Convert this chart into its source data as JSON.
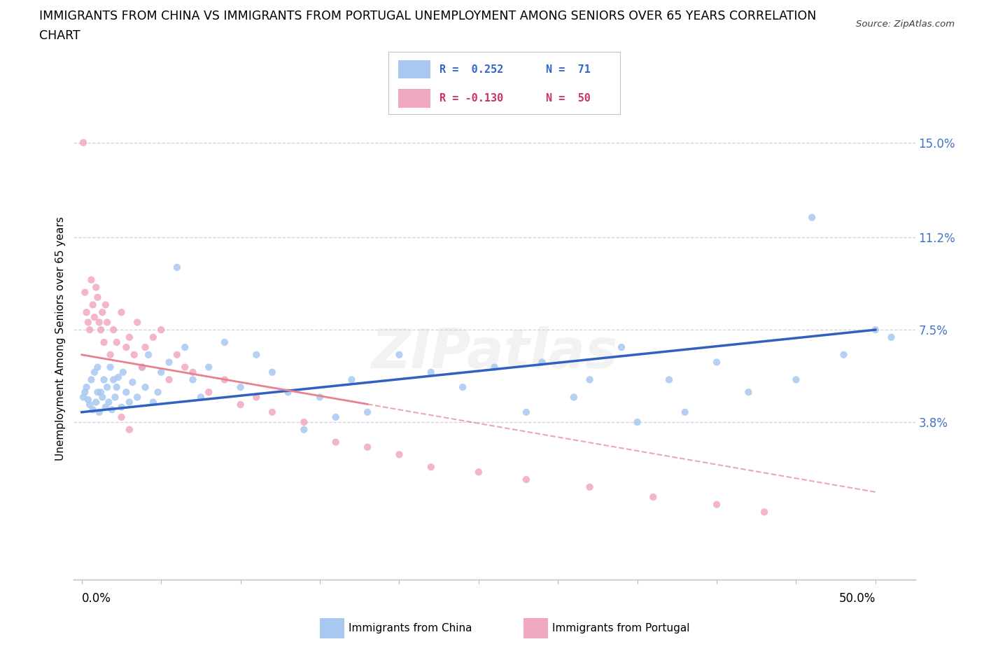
{
  "title_line1": "IMMIGRANTS FROM CHINA VS IMMIGRANTS FROM PORTUGAL UNEMPLOYMENT AMONG SENIORS OVER 65 YEARS CORRELATION",
  "title_line2": "CHART",
  "source": "Source: ZipAtlas.com",
  "ylabel": "Unemployment Among Seniors over 65 years",
  "yticks": [
    0.0,
    0.038,
    0.075,
    0.112,
    0.15
  ],
  "ytick_labels": [
    "",
    "3.8%",
    "7.5%",
    "11.2%",
    "15.0%"
  ],
  "xlim": [
    -0.005,
    0.525
  ],
  "ylim": [
    -0.025,
    0.168
  ],
  "legend_china_r": "R =  0.252",
  "legend_china_n": "N =  71",
  "legend_portugal_r": "R = -0.130",
  "legend_portugal_n": "N =  50",
  "color_china": "#a8c8f0",
  "color_portugal": "#f0a8c0",
  "color_china_line": "#3060c0",
  "color_portugal_line": "#e88090",
  "color_grid": "#d0d0e0",
  "china_x": [
    0.001,
    0.002,
    0.003,
    0.004,
    0.005,
    0.006,
    0.007,
    0.008,
    0.009,
    0.01,
    0.01,
    0.011,
    0.012,
    0.013,
    0.014,
    0.015,
    0.016,
    0.017,
    0.018,
    0.019,
    0.02,
    0.021,
    0.022,
    0.023,
    0.025,
    0.026,
    0.028,
    0.03,
    0.032,
    0.035,
    0.038,
    0.04,
    0.042,
    0.045,
    0.048,
    0.05,
    0.055,
    0.06,
    0.065,
    0.07,
    0.075,
    0.08,
    0.09,
    0.1,
    0.11,
    0.12,
    0.13,
    0.15,
    0.17,
    0.2,
    0.22,
    0.24,
    0.26,
    0.29,
    0.31,
    0.34,
    0.37,
    0.4,
    0.42,
    0.45,
    0.48,
    0.5,
    0.51,
    0.28,
    0.32,
    0.35,
    0.38,
    0.16,
    0.18,
    0.14,
    0.46
  ],
  "china_y": [
    0.048,
    0.05,
    0.052,
    0.047,
    0.045,
    0.055,
    0.043,
    0.058,
    0.046,
    0.05,
    0.06,
    0.042,
    0.05,
    0.048,
    0.055,
    0.044,
    0.052,
    0.046,
    0.06,
    0.043,
    0.055,
    0.048,
    0.052,
    0.056,
    0.044,
    0.058,
    0.05,
    0.046,
    0.054,
    0.048,
    0.06,
    0.052,
    0.065,
    0.046,
    0.05,
    0.058,
    0.062,
    0.1,
    0.068,
    0.055,
    0.048,
    0.06,
    0.07,
    0.052,
    0.065,
    0.058,
    0.05,
    0.048,
    0.055,
    0.065,
    0.058,
    0.052,
    0.06,
    0.062,
    0.048,
    0.068,
    0.055,
    0.062,
    0.05,
    0.055,
    0.065,
    0.075,
    0.072,
    0.042,
    0.055,
    0.038,
    0.042,
    0.04,
    0.042,
    0.035,
    0.12
  ],
  "portugal_x": [
    0.001,
    0.002,
    0.003,
    0.004,
    0.005,
    0.006,
    0.007,
    0.008,
    0.009,
    0.01,
    0.011,
    0.012,
    0.013,
    0.014,
    0.015,
    0.016,
    0.018,
    0.02,
    0.022,
    0.025,
    0.028,
    0.03,
    0.033,
    0.035,
    0.038,
    0.04,
    0.045,
    0.05,
    0.055,
    0.06,
    0.065,
    0.07,
    0.08,
    0.09,
    0.1,
    0.11,
    0.12,
    0.14,
    0.16,
    0.18,
    0.2,
    0.22,
    0.25,
    0.28,
    0.32,
    0.36,
    0.4,
    0.43,
    0.03,
    0.025
  ],
  "portugal_y": [
    0.15,
    0.09,
    0.082,
    0.078,
    0.075,
    0.095,
    0.085,
    0.08,
    0.092,
    0.088,
    0.078,
    0.075,
    0.082,
    0.07,
    0.085,
    0.078,
    0.065,
    0.075,
    0.07,
    0.082,
    0.068,
    0.072,
    0.065,
    0.078,
    0.06,
    0.068,
    0.072,
    0.075,
    0.055,
    0.065,
    0.06,
    0.058,
    0.05,
    0.055,
    0.045,
    0.048,
    0.042,
    0.038,
    0.03,
    0.028,
    0.025,
    0.02,
    0.018,
    0.015,
    0.012,
    0.008,
    0.005,
    0.002,
    0.035,
    0.04
  ],
  "china_trend_start": 0.042,
  "china_trend_end": 0.075,
  "portugal_trend_start": 0.065,
  "portugal_trend_end": 0.01,
  "watermark": "ZIPatlas",
  "title_fontsize": 12.5,
  "label_fontsize": 11,
  "tick_fontsize": 12
}
